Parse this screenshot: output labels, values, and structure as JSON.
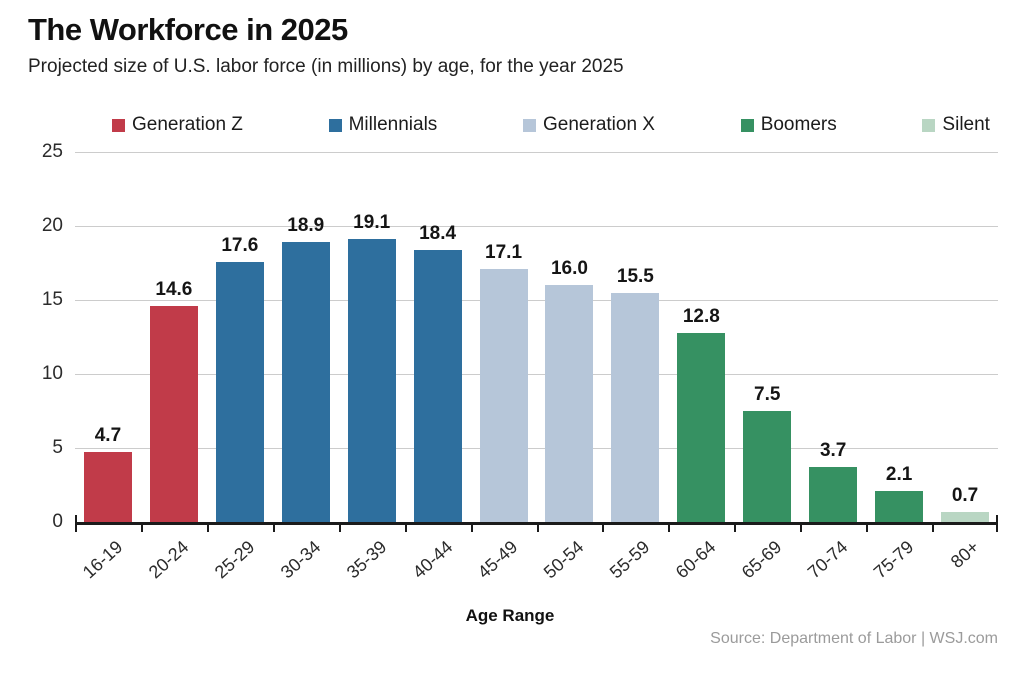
{
  "header": {
    "title": "The Workforce in 2025",
    "subtitle": "Projected size of U.S. labor force (in millions) by age, for the year 2025"
  },
  "footer": {
    "source": "Source: Department of Labor  |  WSJ.com"
  },
  "chart_data": {
    "type": "bar",
    "title": "The Workforce in 2025",
    "subtitle": "Projected size of U.S. labor force (in millions) by age, for the year 2025",
    "xlabel": "Age Range",
    "ylabel": "",
    "ylim": [
      0,
      25
    ],
    "yticks": [
      0,
      5,
      10,
      15,
      20,
      25
    ],
    "grid": true,
    "legend_position": "top",
    "categories": [
      "16-19",
      "20-24",
      "25-29",
      "30-34",
      "35-39",
      "40-44",
      "45-49",
      "50-54",
      "55-59",
      "60-64",
      "65-69",
      "70-74",
      "75-79",
      "80+"
    ],
    "values": [
      4.7,
      14.6,
      17.6,
      18.9,
      19.1,
      18.4,
      17.1,
      16.0,
      15.5,
      12.8,
      7.5,
      3.7,
      2.1,
      0.7
    ],
    "value_labels": [
      "4.7",
      "14.6",
      "17.6",
      "18.9",
      "19.1",
      "18.4",
      "17.1",
      "16.0",
      "15.5",
      "12.8",
      "7.5",
      "3.7",
      "2.1",
      "0.7"
    ],
    "bar_generation": [
      "Generation Z",
      "Generation Z",
      "Millennials",
      "Millennials",
      "Millennials",
      "Millennials",
      "Generation X",
      "Generation X",
      "Generation X",
      "Boomers",
      "Boomers",
      "Boomers",
      "Boomers",
      "Silent"
    ],
    "legend": [
      {
        "label": "Generation Z",
        "color": "#c13b49"
      },
      {
        "label": "Millennials",
        "color": "#2e6f9e"
      },
      {
        "label": "Generation X",
        "color": "#b6c6d9"
      },
      {
        "label": "Boomers",
        "color": "#369162"
      },
      {
        "label": "Silent",
        "color": "#b9d6c3"
      }
    ],
    "axis_color": "#1b1b1b",
    "grid_color": "#cccccc"
  }
}
